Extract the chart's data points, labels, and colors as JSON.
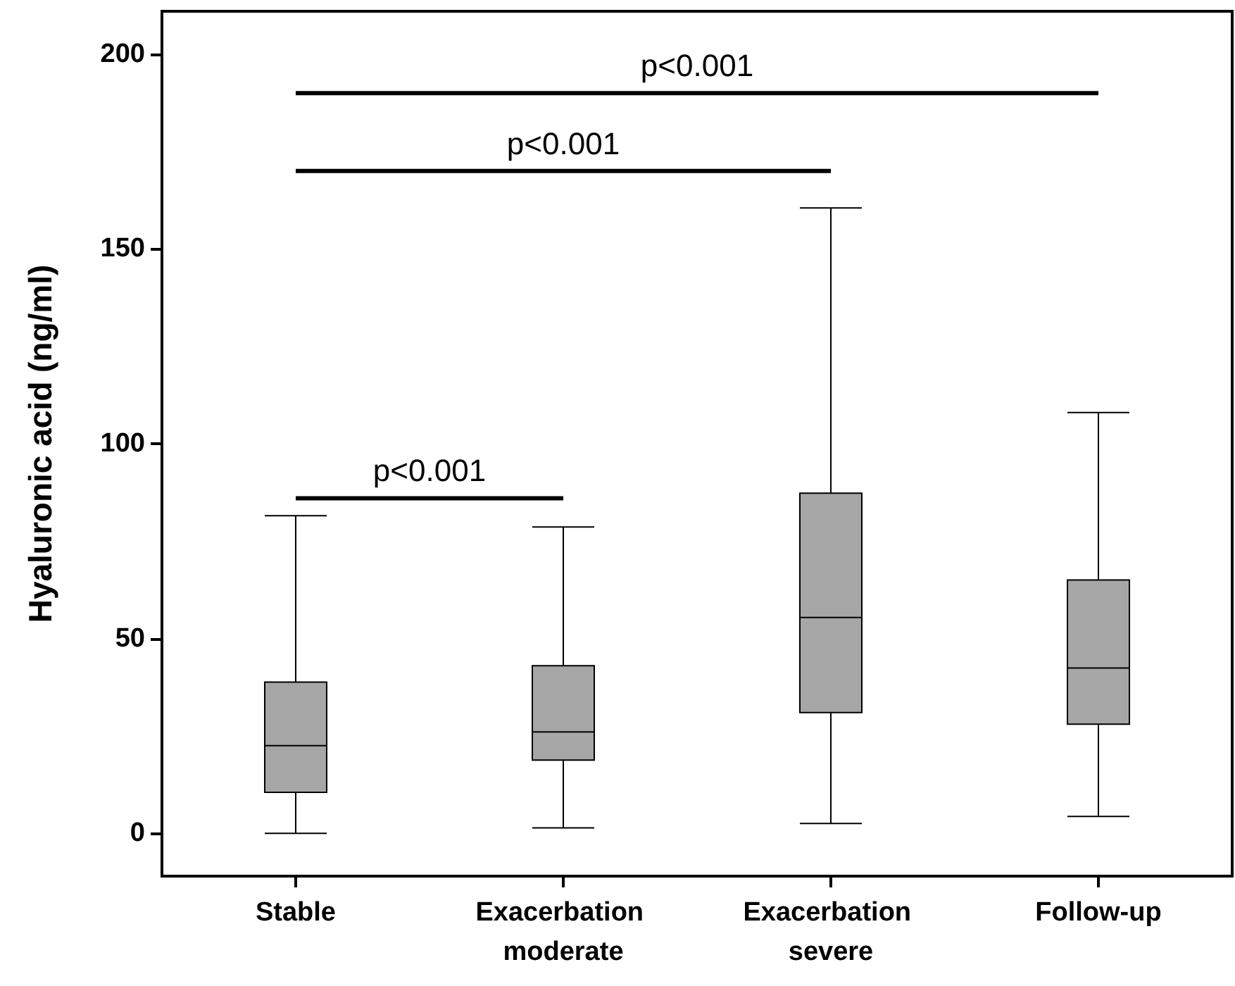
{
  "chart_data": {
    "type": "box",
    "ylabel": "Hyaluronic acid (ng/ml)",
    "categories": [
      "Stable",
      "Exacerbation moderate",
      "Exacerbation severe",
      "Follow-up"
    ],
    "color": "#a6a6a6",
    "boxes": [
      {
        "low": 0,
        "q1": 10.5,
        "median": 22.5,
        "q3": 38.8,
        "high": 81.5
      },
      {
        "low": 1.4,
        "q1": 18.8,
        "median": 26,
        "q3": 43,
        "high": 78.6
      },
      {
        "low": 2.5,
        "q1": 31,
        "median": 55.4,
        "q3": 87.3,
        "high": 160.5
      },
      {
        "low": 4.3,
        "q1": 28,
        "median": 42.4,
        "q3": 65,
        "high": 108
      }
    ],
    "ylim": [
      -11,
      211
    ],
    "yticks": [
      0,
      50,
      100,
      150,
      200
    ],
    "grid": false,
    "annotations": [
      "p<0.001",
      "p<0.001",
      "p<0.001"
    ]
  }
}
